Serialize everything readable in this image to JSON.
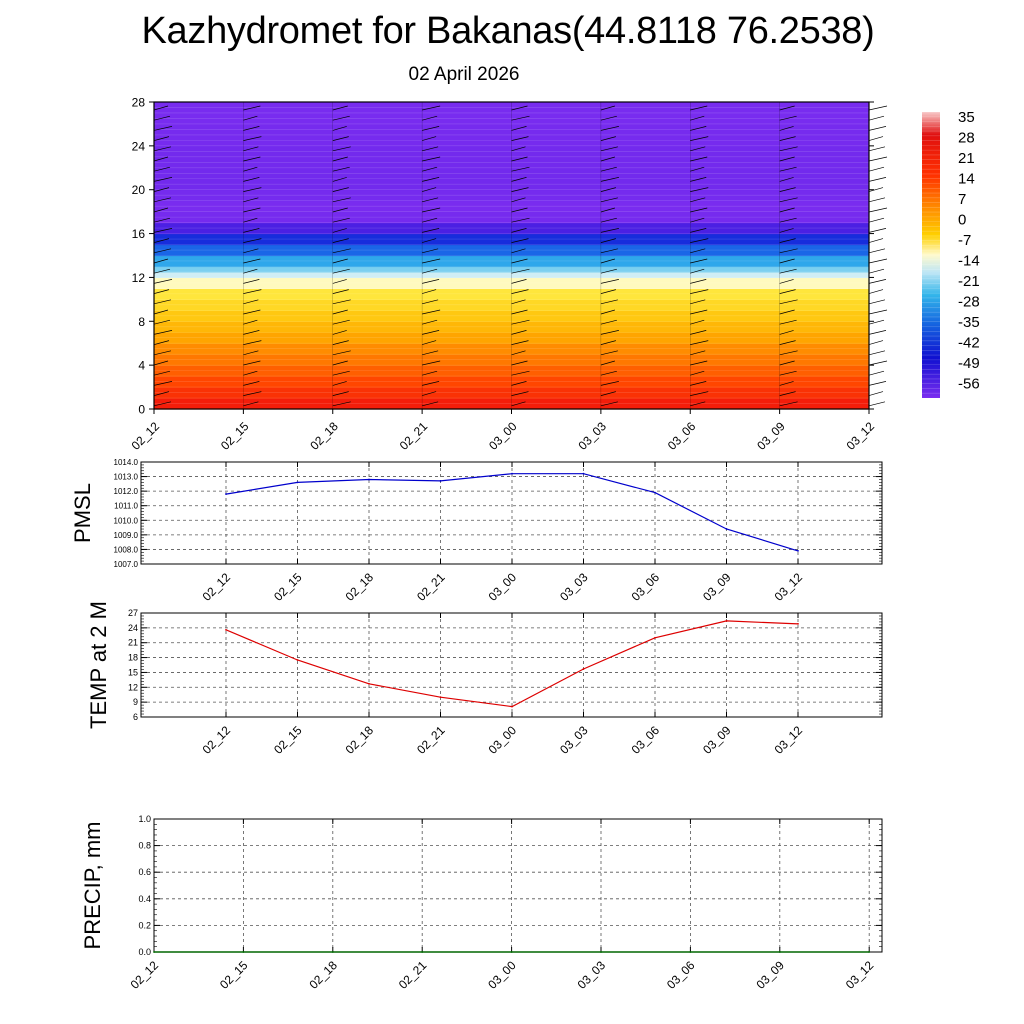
{
  "title": "Kazhydromet for Bakanas(44.8118 76.2538)",
  "subtitle": "02 April 2026",
  "colors": {
    "pmsl": "#0000cc",
    "temp": "#dd0000",
    "precip": "#006600",
    "grid": "#666666"
  },
  "chart_data": [
    {
      "type": "heatmap",
      "name": "temperature-cross-section",
      "x_ticks": [
        "02_12",
        "02_15",
        "02_18",
        "02_21",
        "03_00",
        "03_03",
        "03_06",
        "03_09",
        "03_12"
      ],
      "y_ticks": [
        0,
        4,
        8,
        12,
        16,
        20,
        24,
        28
      ],
      "ylim": [
        0,
        28
      ],
      "colorbar_labels": [
        "35",
        "28",
        "21",
        "14",
        "7",
        "0",
        "-7",
        "-14",
        "-21",
        "-28",
        "-35",
        "-42",
        "-49",
        "-56"
      ],
      "colorbar_range": [
        -60,
        38
      ],
      "profile_levels": [
        0,
        1,
        2,
        3,
        4,
        5,
        6,
        7,
        8,
        9,
        10,
        11,
        12,
        12.5,
        13,
        14,
        15,
        16,
        17,
        18,
        19,
        20,
        22,
        24,
        26,
        28
      ],
      "profile_temps": [
        24,
        20,
        17,
        15,
        13,
        11,
        9,
        6,
        3,
        -1,
        -5,
        -9,
        -13,
        -18,
        -25,
        -33,
        -42,
        -50,
        -57,
        -62,
        -60,
        -58,
        -58,
        -59,
        -60,
        -61
      ],
      "wind_barb_columns": 9
    },
    {
      "type": "line",
      "name": "pmsl",
      "ylabel": "PMSL",
      "x": [
        "02_12",
        "02_15",
        "02_18",
        "02_21",
        "03_00",
        "03_03",
        "03_06",
        "03_09",
        "03_12"
      ],
      "values": [
        1011.8,
        1012.6,
        1012.8,
        1012.7,
        1013.2,
        1013.2,
        1011.9,
        1009.4,
        1007.9
      ],
      "ylim": [
        1007.0,
        1014.0
      ],
      "y_ticks": [
        "1014.0",
        "1013.0",
        "1012.0",
        "1011.0",
        "1010.0",
        "1009.0",
        "1008.0",
        "1007.0"
      ]
    },
    {
      "type": "line",
      "name": "temp-2m",
      "ylabel": "TEMP at 2 M",
      "x": [
        "02_12",
        "02_15",
        "02_18",
        "02_21",
        "03_00",
        "03_03",
        "03_06",
        "03_09",
        "03_12"
      ],
      "values": [
        23.6,
        17.5,
        12.7,
        10.0,
        8.1,
        15.7,
        22.0,
        25.4,
        24.8
      ],
      "ylim": [
        6,
        27
      ],
      "y_ticks": [
        "27",
        "24",
        "21",
        "18",
        "15",
        "12",
        "9",
        "6"
      ]
    },
    {
      "type": "line",
      "name": "precip",
      "ylabel": "PRECIP, mm",
      "x": [
        "02_12",
        "02_15",
        "02_18",
        "02_21",
        "03_00",
        "03_03",
        "03_06",
        "03_09",
        "03_12"
      ],
      "values": [
        0,
        0,
        0,
        0,
        0,
        0,
        0,
        0,
        0
      ],
      "ylim": [
        0,
        1.0
      ],
      "y_ticks": [
        "1.0",
        "0.8",
        "0.6",
        "0.4",
        "0.2",
        "0.0"
      ]
    }
  ]
}
